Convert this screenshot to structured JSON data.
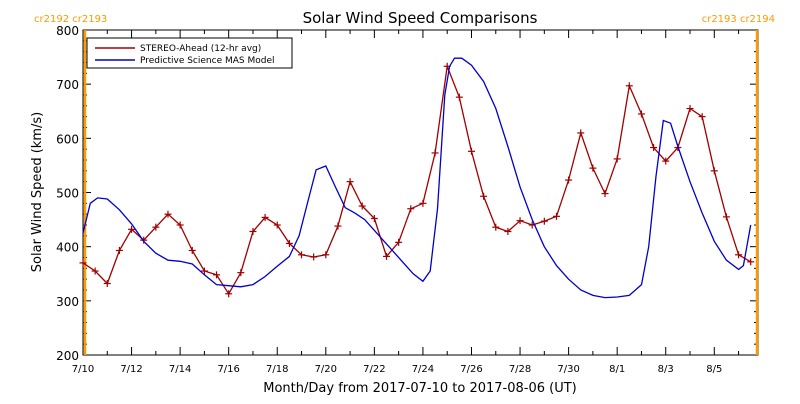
{
  "colors": {
    "stereo": "#a00000",
    "mas": "#0000cc",
    "cr_line": "#ff9900",
    "cr_text": "#ff9900",
    "axis": "#000000"
  },
  "carrington": {
    "left_label": "cr2192 cr2193",
    "right_label": "cr2193 cr2194",
    "left_day": 0,
    "right_day": 27.8
  },
  "chart_data": {
    "type": "line",
    "title": "Solar Wind Speed Comparisons",
    "xlabel": "Month/Day from 2017-07-10 to 2017-08-06 (UT)",
    "ylabel": "Solar Wind Speed (km/s)",
    "xlim": [
      "2017-07-10",
      "2017-08-06"
    ],
    "ylim": [
      200,
      800
    ],
    "x_ticks": [
      "7/10",
      "7/12",
      "7/14",
      "7/16",
      "7/18",
      "7/20",
      "7/22",
      "7/24",
      "7/26",
      "7/28",
      "7/30",
      "8/1",
      "8/3",
      "8/5"
    ],
    "y_ticks": [
      200,
      300,
      400,
      500,
      600,
      700,
      800
    ],
    "legend_position": "top-left",
    "series": [
      {
        "name": "STEREO-Ahead (12-hr avg)",
        "color": "#a00000",
        "marker": "plus",
        "x": [
          0.0,
          0.5,
          1.0,
          1.5,
          2.0,
          2.5,
          3.0,
          3.5,
          4.0,
          4.5,
          5.0,
          5.5,
          6.0,
          6.5,
          7.0,
          7.5,
          8.0,
          8.5,
          9.0,
          9.5,
          10.0,
          10.5,
          11.0,
          11.5,
          12.0,
          12.5,
          13.0,
          13.5,
          14.0,
          14.5,
          15.0,
          15.5,
          16.0,
          16.5,
          17.0,
          17.5,
          18.0,
          18.5,
          19.0,
          19.5,
          20.0,
          20.5,
          21.0,
          21.5,
          22.0,
          22.5,
          23.0,
          23.5,
          24.0,
          24.5,
          25.0,
          25.5,
          26.0,
          26.5,
          27.0,
          27.5
        ],
        "y": [
          370,
          355,
          332,
          393,
          432,
          412,
          436,
          460,
          440,
          393,
          355,
          348,
          313,
          352,
          428,
          454,
          440,
          406,
          385,
          381,
          385,
          438,
          520,
          475,
          452,
          382,
          408,
          470,
          480,
          573,
          733,
          676,
          576,
          493,
          436,
          428,
          448,
          440,
          447,
          456,
          523,
          610,
          545,
          498,
          562,
          697,
          645,
          583,
          558,
          583,
          655,
          640,
          540,
          455,
          385,
          372
        ]
      },
      {
        "name": "Predictive Science MAS Model",
        "color": "#0000cc",
        "marker": "none",
        "x": [
          0.0,
          0.3,
          0.6,
          1.0,
          1.5,
          2.0,
          2.5,
          3.0,
          3.5,
          4.0,
          4.5,
          5.0,
          5.5,
          6.0,
          6.5,
          7.0,
          7.5,
          8.0,
          8.5,
          8.9,
          9.3,
          9.6,
          10.0,
          10.4,
          10.8,
          11.2,
          11.6,
          12.0,
          12.4,
          12.8,
          13.2,
          13.6,
          14.0,
          14.3,
          14.6,
          14.9,
          15.1,
          15.3,
          15.6,
          16.0,
          16.5,
          17.0,
          17.5,
          18.0,
          18.5,
          19.0,
          19.5,
          20.0,
          20.5,
          21.0,
          21.5,
          22.0,
          22.5,
          23.0,
          23.3,
          23.6,
          23.9,
          24.2,
          24.5,
          25.0,
          25.5,
          26.0,
          26.5,
          27.0,
          27.2,
          27.5
        ],
        "y": [
          425,
          480,
          490,
          488,
          468,
          442,
          410,
          388,
          375,
          373,
          368,
          348,
          330,
          328,
          326,
          330,
          345,
          364,
          382,
          420,
          490,
          542,
          549,
          510,
          472,
          462,
          450,
          430,
          410,
          390,
          370,
          350,
          336,
          355,
          470,
          680,
          733,
          748,
          748,
          735,
          705,
          655,
          585,
          510,
          450,
          400,
          365,
          340,
          320,
          310,
          306,
          307,
          310,
          330,
          400,
          530,
          633,
          628,
          585,
          520,
          462,
          410,
          375,
          358,
          365,
          440
        ]
      }
    ]
  }
}
